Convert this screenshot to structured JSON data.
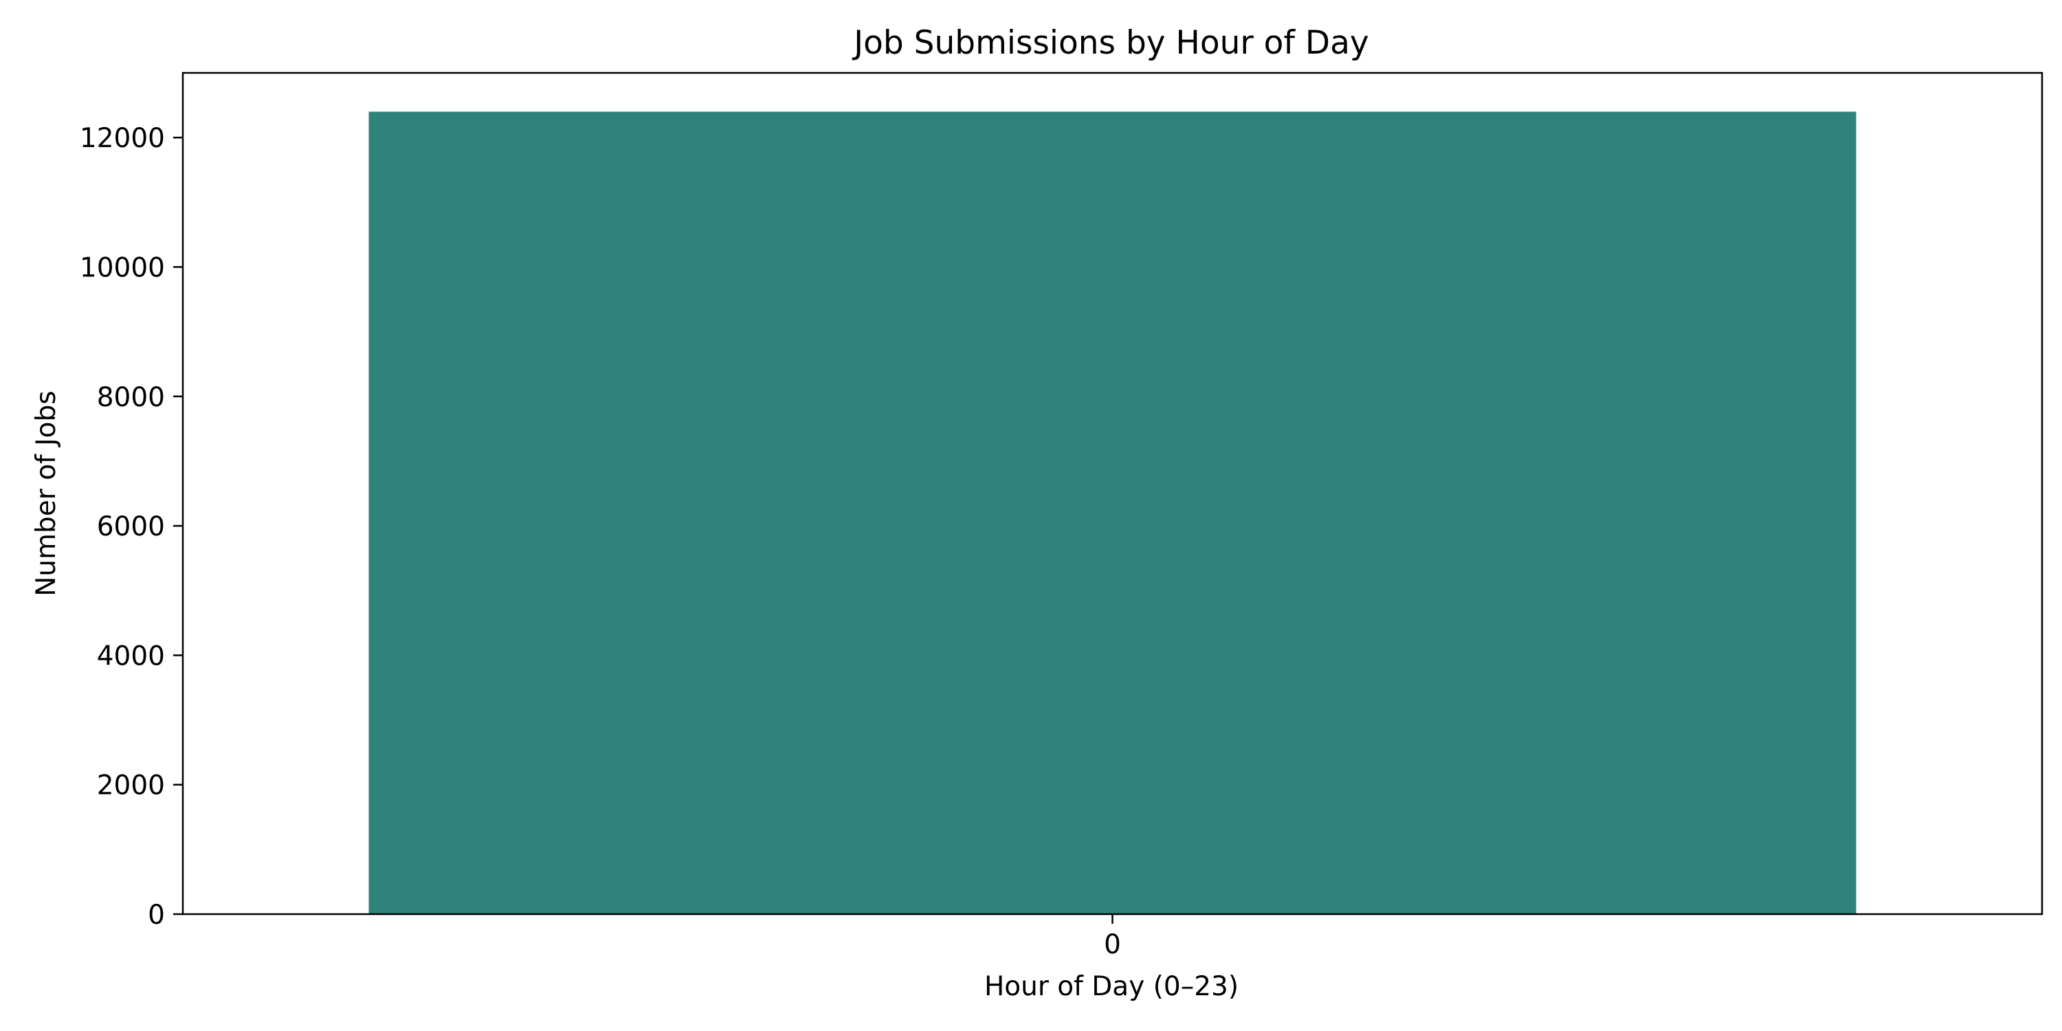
{
  "chart_data": {
    "type": "bar",
    "title": "Job Submissions by Hour of Day",
    "xlabel": "Hour of Day (0–23)",
    "ylabel": "Number of Jobs",
    "categories": [
      "0"
    ],
    "values": [
      12400
    ],
    "ylim": [
      0,
      13000
    ],
    "yticks": [
      0,
      2000,
      4000,
      6000,
      8000,
      10000,
      12000
    ],
    "grid": false,
    "legend": "none",
    "colors": {
      "bar": "#2e837d",
      "axis": "#000000",
      "background": "#ffffff"
    }
  }
}
